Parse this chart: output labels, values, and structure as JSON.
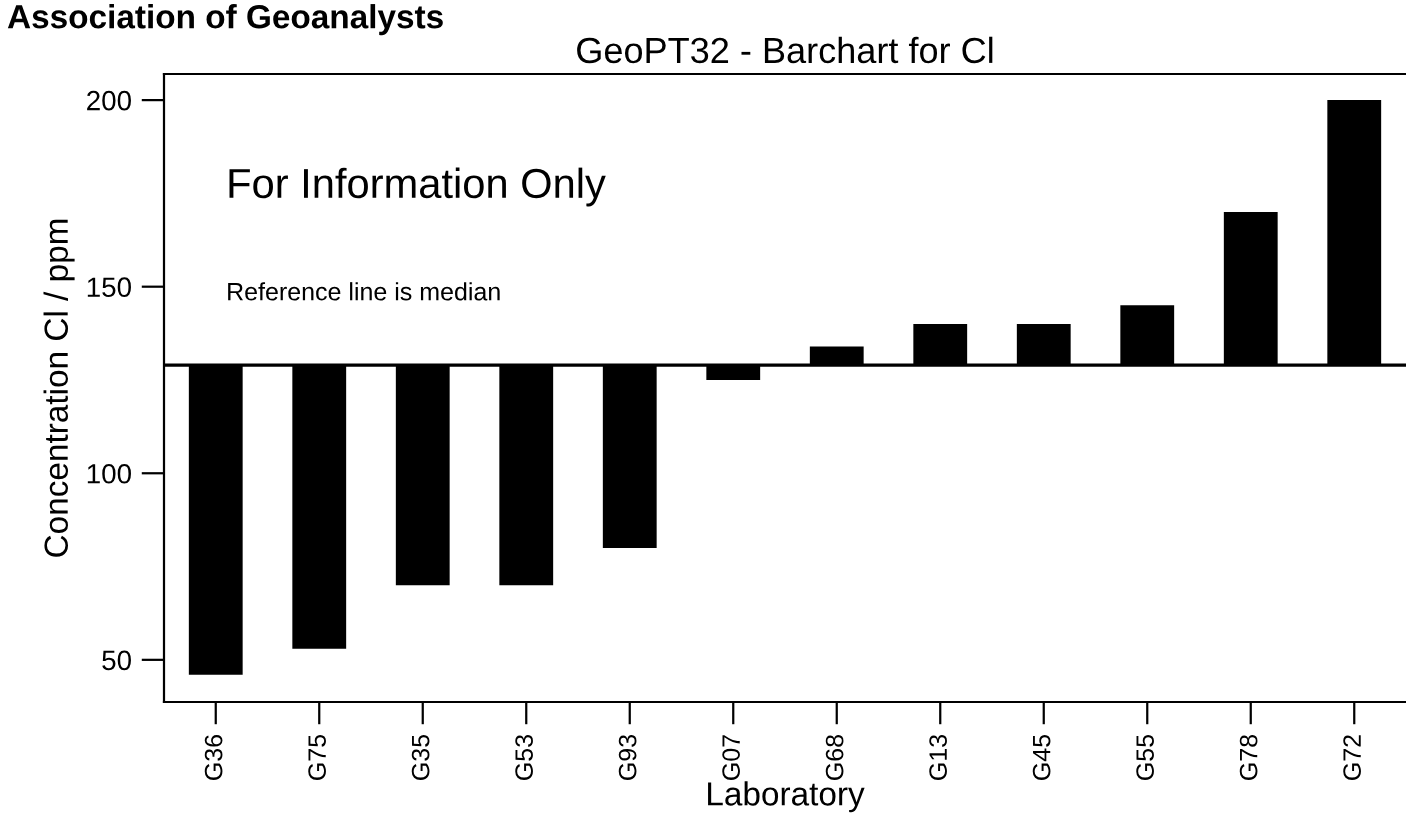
{
  "chart_data": {
    "type": "bar",
    "title": "GeoPT32 - Barchart for Cl",
    "xlabel": "Laboratory",
    "ylabel": "Concentration Cl / ppm",
    "categories": [
      "G36",
      "G75",
      "G35",
      "G53",
      "G93",
      "G07",
      "G68",
      "G13",
      "G45",
      "G55",
      "G78",
      "G72"
    ],
    "base": [
      129,
      129,
      129,
      129,
      129,
      129,
      129,
      129,
      129,
      129,
      129,
      129
    ],
    "values": [
      -83,
      -76,
      -59,
      -59,
      -49,
      -4,
      5,
      11,
      11,
      16,
      41,
      71
    ],
    "color": "#000000",
    "ylim": [
      38.7,
      207
    ],
    "yticks": [
      50,
      100,
      150,
      200
    ],
    "grid": false,
    "ref_lines": [
      {
        "axis": "y",
        "value": 129,
        "color": "#000000"
      }
    ],
    "annotations": [
      "Association of Geoanalysts",
      "For Information Only",
      "Reference line is median"
    ]
  }
}
